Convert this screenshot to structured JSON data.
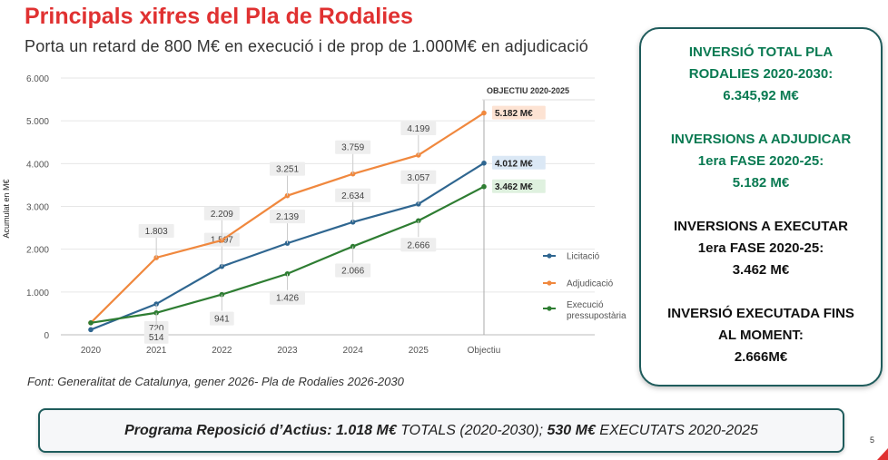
{
  "title": "Principals xifres del Pla de Rodalies",
  "subtitle": "Porta un retard de 800 M€ en execució i de prop de 1.000M€ en adjudicació",
  "source": "Font: Generalitat de Catalunya, gener 2026- Pla de Rodalies 2026-2030",
  "colors": {
    "licitacio": "#2f6690",
    "adjudicacio": "#f0883e",
    "execucio": "#2e7d32",
    "accent_red": "#e03131",
    "panel_border": "#1f5c5c"
  },
  "chart_data": {
    "type": "line",
    "ylabel": "Acumulat en M€",
    "ylim": [
      0,
      6000
    ],
    "yticks": [
      "0",
      "1.000",
      "2.000",
      "3.000",
      "4.000",
      "5.000",
      "6.000"
    ],
    "categories": [
      "2020",
      "2021",
      "2022",
      "2023",
      "2024",
      "2025",
      "Objectiu"
    ],
    "series": [
      {
        "name": "Licitació",
        "color": "#2f6690",
        "values": [
          120,
          720,
          1597,
          2139,
          2634,
          3057,
          4012
        ],
        "labels": [
          "",
          "720",
          "1.597",
          "2.139",
          "2.634",
          "3.057",
          "4.012 M€"
        ]
      },
      {
        "name": "Adjudicació",
        "color": "#f0883e",
        "values": [
          280,
          1803,
          2209,
          3251,
          3759,
          4199,
          5182
        ],
        "labels": [
          "",
          "1.803",
          "2.209",
          "3.251",
          "3.759",
          "4.199",
          "5.182 M€"
        ]
      },
      {
        "name": "Execució pressupostària",
        "color": "#2e7d32",
        "values": [
          280,
          514,
          941,
          1426,
          2066,
          2666,
          3462
        ],
        "labels": [
          "",
          "514",
          "941",
          "1.426",
          "2.066",
          "2.666",
          "3.462 M€"
        ]
      }
    ],
    "annotation": "OBJECTIU 2020-2025",
    "legend": [
      "Licitació",
      "Adjudicació",
      "Execució pressupostària"
    ],
    "legend_position": "right",
    "grid": true
  },
  "panel": {
    "blocks": [
      {
        "lines": [
          "INVERSIÓ TOTAL PLA",
          "RODALIES 2020-2030:",
          "6.345,92 M€"
        ],
        "style": "green"
      },
      {
        "lines": [
          "INVERSIONS A ADJUDICAR",
          "1era FASE 2020-25:",
          "5.182 M€"
        ],
        "style": "green"
      },
      {
        "lines": [
          "INVERSIONS A EXECUTAR",
          "1era FASE 2020-25:",
          "3.462 M€"
        ],
        "style": "dark"
      },
      {
        "lines": [
          "INVERSIÓ EXECUTADA FINS",
          "AL MOMENT:",
          "2.666M€"
        ],
        "style": "dark"
      }
    ]
  },
  "bottom_bar": {
    "part1_bold": "Programa Reposició d’Actius: 1.018 M€",
    "part2": " TOTALS (2020-2030);  ",
    "part3_bold": "530 M€",
    "part4": " EXECUTATS 2020-2025"
  },
  "page_number": "5"
}
